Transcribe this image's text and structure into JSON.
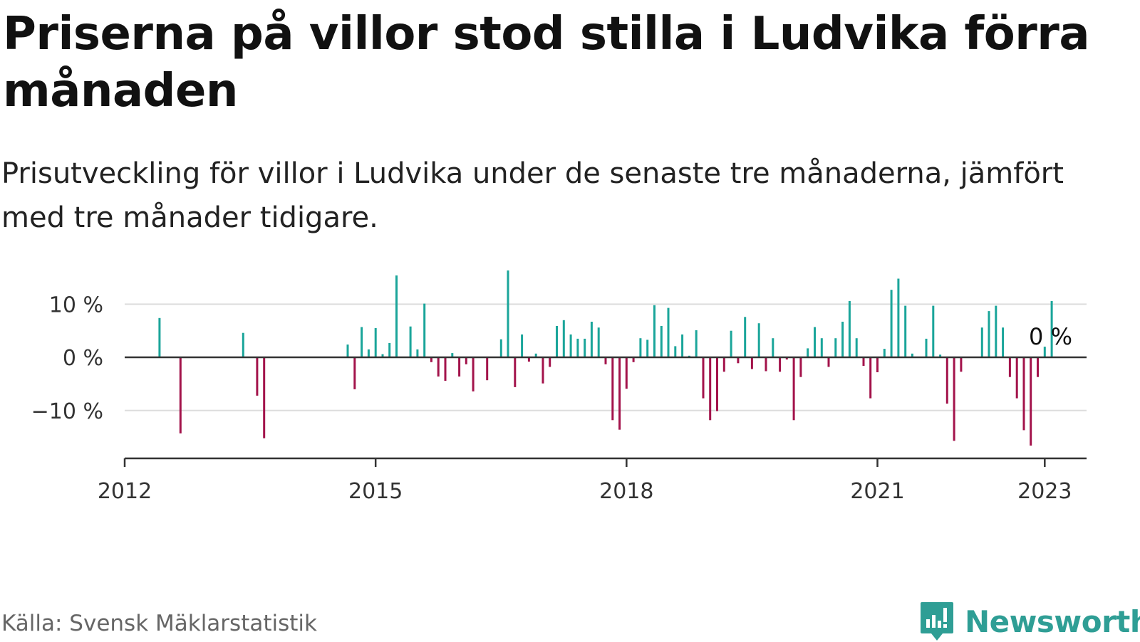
{
  "title": "Priserna på villor stod stilla i Ludvika förra månaden",
  "subtitle": "Prisutveckling för villor i Ludvika under de senaste tre månaderna, jämfört med tre månader tidigare.",
  "source": "Källa: Svensk Mäklarstatistik",
  "brand": {
    "name": "Newsworthy",
    "icon": "bar-chart-logo-icon"
  },
  "colors": {
    "positive": "#1aa59a",
    "negative": "#a3134b",
    "grid": "#dddddd",
    "axis": "#333333"
  },
  "chart_data": {
    "type": "bar",
    "title": "Priserna på villor stod stilla i Ludvika förra månaden",
    "subtitle": "Prisutveckling för villor i Ludvika under de senaste tre månaderna, jämfört med tre månader tidigare.",
    "xlabel": "",
    "ylabel": "",
    "xlim": [
      "2012-01",
      "2023-07"
    ],
    "ylim": [
      -19,
      15
    ],
    "grid": true,
    "x_ticks": [
      {
        "value": "2012-01",
        "label": "2012"
      },
      {
        "value": "2015-01",
        "label": "2015"
      },
      {
        "value": "2018-01",
        "label": "2018"
      },
      {
        "value": "2021-01",
        "label": "2021"
      },
      {
        "value": "2023-01",
        "label": "2023"
      }
    ],
    "y_ticks": [
      {
        "value": 10,
        "label": "10 %"
      },
      {
        "value": 0,
        "label": "0 %"
      },
      {
        "value": -10,
        "label": "−10 %"
      }
    ],
    "annotation": {
      "x": "2022-12",
      "y": 0,
      "label": "0 %"
    },
    "series": [
      {
        "values": [
          {
            "x": "2012-06",
            "y": 7.4
          },
          {
            "x": "2012-09",
            "y": -14.3
          },
          {
            "x": "2013-06",
            "y": 4.6
          },
          {
            "x": "2013-08",
            "y": -7.2
          },
          {
            "x": "2013-09",
            "y": -15.2
          },
          {
            "x": "2014-09",
            "y": 2.4
          },
          {
            "x": "2014-10",
            "y": -6.0
          },
          {
            "x": "2014-11",
            "y": 5.7
          },
          {
            "x": "2014-12",
            "y": 1.5
          },
          {
            "x": "2015-01",
            "y": 5.5
          },
          {
            "x": "2015-02",
            "y": 0.6
          },
          {
            "x": "2015-03",
            "y": 2.7
          },
          {
            "x": "2015-04",
            "y": 15.4
          },
          {
            "x": "2015-06",
            "y": 5.8
          },
          {
            "x": "2015-07",
            "y": 1.5
          },
          {
            "x": "2015-08",
            "y": 10.1
          },
          {
            "x": "2015-09",
            "y": -0.9
          },
          {
            "x": "2015-10",
            "y": -3.6
          },
          {
            "x": "2015-11",
            "y": -4.4
          },
          {
            "x": "2015-12",
            "y": 0.8
          },
          {
            "x": "2016-01",
            "y": -3.6
          },
          {
            "x": "2016-02",
            "y": -1.3
          },
          {
            "x": "2016-03",
            "y": -6.4
          },
          {
            "x": "2016-05",
            "y": -4.3
          },
          {
            "x": "2016-07",
            "y": 3.4
          },
          {
            "x": "2016-08",
            "y": 16.9
          },
          {
            "x": "2016-09",
            "y": -5.6
          },
          {
            "x": "2016-10",
            "y": 4.3
          },
          {
            "x": "2016-11",
            "y": -0.8
          },
          {
            "x": "2016-12",
            "y": 0.7
          },
          {
            "x": "2017-01",
            "y": -4.9
          },
          {
            "x": "2017-02",
            "y": -1.8
          },
          {
            "x": "2017-03",
            "y": 5.9
          },
          {
            "x": "2017-04",
            "y": 7.0
          },
          {
            "x": "2017-05",
            "y": 4.3
          },
          {
            "x": "2017-06",
            "y": 3.5
          },
          {
            "x": "2017-07",
            "y": 3.5
          },
          {
            "x": "2017-08",
            "y": 6.7
          },
          {
            "x": "2017-09",
            "y": 5.6
          },
          {
            "x": "2017-10",
            "y": -1.3
          },
          {
            "x": "2017-11",
            "y": -11.8
          },
          {
            "x": "2017-12",
            "y": -13.6
          },
          {
            "x": "2018-01",
            "y": -5.9
          },
          {
            "x": "2018-02",
            "y": -0.9
          },
          {
            "x": "2018-03",
            "y": 3.6
          },
          {
            "x": "2018-04",
            "y": 3.3
          },
          {
            "x": "2018-05",
            "y": 9.8
          },
          {
            "x": "2018-06",
            "y": 5.9
          },
          {
            "x": "2018-07",
            "y": 9.3
          },
          {
            "x": "2018-08",
            "y": 2.1
          },
          {
            "x": "2018-09",
            "y": 4.3
          },
          {
            "x": "2018-10",
            "y": 0.3
          },
          {
            "x": "2018-11",
            "y": 5.1
          },
          {
            "x": "2018-12",
            "y": -7.7
          },
          {
            "x": "2019-01",
            "y": -11.8
          },
          {
            "x": "2019-02",
            "y": -10.1
          },
          {
            "x": "2019-03",
            "y": -2.7
          },
          {
            "x": "2019-04",
            "y": 5.0
          },
          {
            "x": "2019-05",
            "y": -1.1
          },
          {
            "x": "2019-06",
            "y": 7.6
          },
          {
            "x": "2019-07",
            "y": -2.2
          },
          {
            "x": "2019-08",
            "y": 6.4
          },
          {
            "x": "2019-09",
            "y": -2.6
          },
          {
            "x": "2019-10",
            "y": 3.6
          },
          {
            "x": "2019-11",
            "y": -2.7
          },
          {
            "x": "2019-12",
            "y": -0.4
          },
          {
            "x": "2020-01",
            "y": -11.8
          },
          {
            "x": "2020-02",
            "y": -3.7
          },
          {
            "x": "2020-03",
            "y": 1.7
          },
          {
            "x": "2020-04",
            "y": 5.7
          },
          {
            "x": "2020-05",
            "y": 3.6
          },
          {
            "x": "2020-06",
            "y": -1.8
          },
          {
            "x": "2020-07",
            "y": 3.6
          },
          {
            "x": "2020-08",
            "y": 6.7
          },
          {
            "x": "2020-09",
            "y": 10.6
          },
          {
            "x": "2020-10",
            "y": 3.6
          },
          {
            "x": "2020-11",
            "y": -1.6
          },
          {
            "x": "2020-12",
            "y": -7.7
          },
          {
            "x": "2021-01",
            "y": -2.8
          },
          {
            "x": "2021-02",
            "y": 1.6
          },
          {
            "x": "2021-03",
            "y": 12.7
          },
          {
            "x": "2021-04",
            "y": 14.8
          },
          {
            "x": "2021-05",
            "y": 9.7
          },
          {
            "x": "2021-06",
            "y": 0.7
          },
          {
            "x": "2021-08",
            "y": 3.5
          },
          {
            "x": "2021-09",
            "y": 9.7
          },
          {
            "x": "2021-10",
            "y": 0.5
          },
          {
            "x": "2021-11",
            "y": -8.7
          },
          {
            "x": "2021-12",
            "y": -15.7
          },
          {
            "x": "2022-01",
            "y": -2.7
          },
          {
            "x": "2022-04",
            "y": 5.6
          },
          {
            "x": "2022-05",
            "y": 8.7
          },
          {
            "x": "2022-06",
            "y": 9.7
          },
          {
            "x": "2022-07",
            "y": 5.6
          },
          {
            "x": "2022-08",
            "y": -3.7
          },
          {
            "x": "2022-09",
            "y": -7.7
          },
          {
            "x": "2022-10",
            "y": -13.7
          },
          {
            "x": "2022-11",
            "y": -16.6
          },
          {
            "x": "2022-12",
            "y": -3.7
          },
          {
            "x": "2023-01",
            "y": 2.0
          },
          {
            "x": "2023-02",
            "y": 10.6
          },
          {
            "x": "2023-03",
            "y": 0.0
          }
        ]
      }
    ]
  }
}
